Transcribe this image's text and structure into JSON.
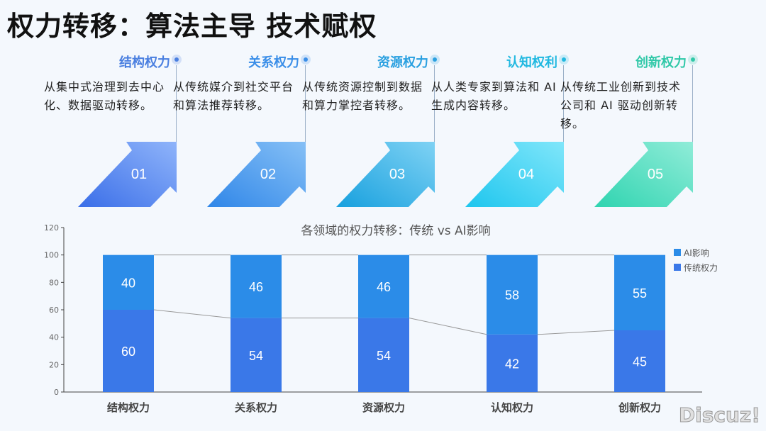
{
  "title": "权力转移：算法主导 技术赋权",
  "cards": [
    {
      "title": "结构权力",
      "desc": "从集中式治理到去中心化、数据驱动转移。",
      "num": "01",
      "color": "#4a7fe0",
      "g1": "#3a6ee8",
      "g2": "#8fb4fa"
    },
    {
      "title": "关系权力",
      "desc": "从传统媒介到社交平台和算法推荐转移。",
      "num": "02",
      "color": "#3a8ee8",
      "g1": "#2f86e8",
      "g2": "#86c0f6"
    },
    {
      "title": "资源权力",
      "desc": "从传统资源控制到数据和算力掌控者转移。",
      "num": "03",
      "color": "#2aa0e0",
      "g1": "#17a0de",
      "g2": "#7fd2f4"
    },
    {
      "title": "认知权利",
      "desc": "从人类专家到算法和 AI 生成内容转移。",
      "num": "04",
      "color": "#20b8e0",
      "g1": "#1ec6ee",
      "g2": "#80e6fa"
    },
    {
      "title": "创新权力",
      "desc": "从传统工业创新到技术公司和 AI 驱动创新转移。",
      "num": "05",
      "color": "#30c8a8",
      "g1": "#2fd4b0",
      "g2": "#90ecd8"
    }
  ],
  "chart_data": {
    "type": "bar",
    "stacked": true,
    "title": "各领域的权力转移：传统 vs AI影响",
    "categories": [
      "结构权力",
      "关系权力",
      "资源权力",
      "认知权力",
      "创新权力"
    ],
    "series": [
      {
        "name": "传统权力",
        "values": [
          60,
          54,
          54,
          42,
          45
        ],
        "color": "#3a78e8"
      },
      {
        "name": "AI影响",
        "values": [
          40,
          46,
          46,
          58,
          55
        ],
        "color": "#2b8ce8"
      }
    ],
    "ylim": [
      0,
      120
    ],
    "yticks": [
      0,
      20,
      40,
      60,
      80,
      100,
      120
    ],
    "legend_position": "top-right",
    "grid": false
  },
  "watermark": "Discuz!"
}
